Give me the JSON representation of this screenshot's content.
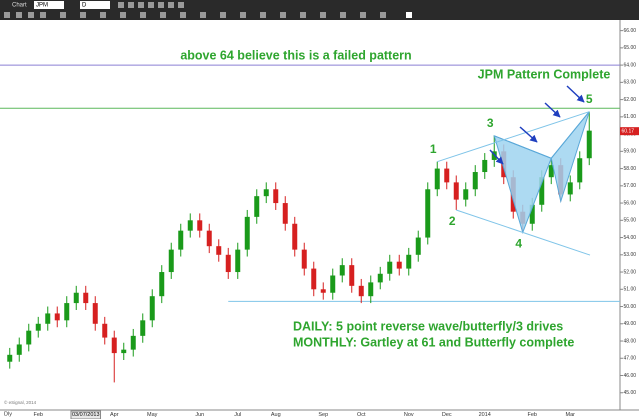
{
  "toolbar": {
    "window": "Chart",
    "symbol": "JPM",
    "interval_box": "D"
  },
  "chart_data": {
    "type": "candlestick",
    "interval": "Dly",
    "copyright": "© eSignal, 2014",
    "categories": [
      null,
      null,
      null,
      "Feb",
      null,
      null,
      null,
      null,
      "03/07/2013",
      null,
      null,
      "Apr",
      null,
      null,
      null,
      "May",
      null,
      null,
      null,
      null,
      "Jun",
      null,
      null,
      null,
      "Jul",
      null,
      null,
      null,
      "Aug",
      null,
      null,
      null,
      null,
      "Sep",
      null,
      null,
      null,
      "Oct",
      null,
      null,
      null,
      null,
      "Nov",
      null,
      null,
      null,
      "Dec",
      null,
      null,
      null,
      "2014",
      null,
      null,
      null,
      null,
      "Feb",
      null,
      null,
      null,
      "Mar",
      null,
      null
    ],
    "open": [
      46.8,
      47.2,
      47.8,
      48.6,
      49.0,
      49.6,
      49.2,
      50.2,
      50.8,
      50.2,
      49.0,
      48.2,
      47.3,
      47.5,
      48.3,
      49.2,
      50.6,
      52.0,
      53.3,
      54.4,
      55.0,
      54.4,
      53.5,
      53.0,
      52.0,
      53.3,
      55.2,
      56.4,
      56.8,
      56.0,
      54.8,
      53.3,
      52.2,
      51.0,
      50.8,
      51.8,
      52.4,
      51.2,
      50.6,
      51.4,
      51.9,
      52.6,
      52.2,
      53.0,
      54.0,
      56.8,
      58.0,
      57.2,
      56.2,
      56.8,
      57.8,
      58.5,
      59.0,
      57.5,
      55.5,
      54.8,
      55.9,
      57.5,
      58.2,
      56.5,
      57.2,
      58.6
    ],
    "high": [
      47.6,
      48.2,
      49.0,
      49.4,
      50.0,
      50.0,
      50.6,
      51.2,
      51.2,
      50.6,
      49.4,
      48.6,
      47.9,
      48.7,
      49.6,
      51.0,
      52.4,
      53.7,
      54.8,
      55.4,
      55.4,
      54.8,
      53.9,
      53.4,
      53.7,
      55.6,
      56.8,
      57.2,
      57.2,
      56.4,
      55.2,
      53.7,
      52.6,
      51.4,
      52.2,
      52.8,
      52.8,
      51.6,
      51.8,
      52.3,
      53.0,
      53.0,
      53.4,
      54.4,
      57.2,
      58.4,
      58.4,
      57.6,
      57.2,
      58.2,
      58.9,
      59.9,
      59.4,
      57.9,
      55.9,
      56.3,
      57.9,
      58.6,
      58.6,
      57.6,
      59.0,
      61.3
    ],
    "low": [
      46.4,
      46.8,
      47.4,
      48.2,
      48.6,
      48.8,
      48.8,
      49.8,
      49.8,
      48.6,
      47.8,
      45.6,
      46.9,
      47.1,
      47.9,
      48.8,
      50.2,
      51.6,
      52.9,
      54.0,
      54.0,
      53.1,
      52.6,
      51.6,
      51.6,
      52.9,
      54.8,
      56.0,
      55.6,
      54.4,
      52.9,
      51.8,
      50.6,
      50.4,
      50.4,
      51.4,
      50.8,
      50.2,
      50.2,
      51.0,
      51.5,
      51.8,
      51.8,
      52.6,
      53.6,
      56.4,
      56.8,
      55.6,
      55.8,
      56.4,
      57.4,
      58.1,
      57.1,
      55.1,
      54.3,
      54.4,
      55.5,
      57.1,
      56.1,
      56.1,
      56.8,
      58.2
    ],
    "close": [
      47.2,
      47.8,
      48.6,
      49.0,
      49.6,
      49.2,
      50.2,
      50.8,
      50.2,
      49.0,
      48.2,
      47.3,
      47.5,
      48.3,
      49.2,
      50.6,
      52.0,
      53.3,
      54.4,
      55.0,
      54.4,
      53.5,
      53.0,
      52.0,
      53.3,
      55.2,
      56.4,
      56.8,
      56.0,
      54.8,
      53.3,
      52.2,
      51.0,
      50.8,
      51.8,
      52.4,
      51.2,
      50.6,
      51.4,
      51.9,
      52.6,
      52.2,
      53.0,
      54.0,
      56.8,
      58.0,
      57.2,
      56.2,
      56.8,
      57.8,
      58.5,
      59.0,
      57.5,
      55.5,
      54.8,
      55.9,
      57.5,
      58.2,
      56.5,
      57.2,
      58.6,
      60.2
    ],
    "up_color": "#1a9a1a",
    "down_color": "#d62020",
    "last_price": 60.17,
    "ylim": [
      44,
      66.5
    ],
    "yticks": [
      {
        "value": 45,
        "label": "45.00"
      },
      {
        "value": 46,
        "label": "46.00"
      },
      {
        "value": 47,
        "label": "47.00"
      },
      {
        "value": 48,
        "label": "48.00"
      },
      {
        "value": 49,
        "label": "49.00"
      },
      {
        "value": 50,
        "label": "50.00"
      },
      {
        "value": 51,
        "label": "51.00"
      },
      {
        "value": 52,
        "label": "52.00"
      },
      {
        "value": 53,
        "label": "53.00"
      },
      {
        "value": 54,
        "label": "54.00"
      },
      {
        "value": 55,
        "label": "55.00"
      },
      {
        "value": 56,
        "label": "56.00"
      },
      {
        "value": 57,
        "label": "57.00"
      },
      {
        "value": 58,
        "label": "58.00"
      },
      {
        "value": 59,
        "label": "59.00"
      },
      {
        "value": 60,
        "label": "60.00"
      },
      {
        "value": 61,
        "label": "61.00"
      },
      {
        "value": 62,
        "label": "62.00"
      },
      {
        "value": 63,
        "label": "63.00"
      },
      {
        "value": 64,
        "label": "64.00"
      },
      {
        "value": 65,
        "label": "65.00"
      },
      {
        "value": 66,
        "label": "66.00"
      }
    ],
    "levels": [
      {
        "value": 64,
        "color": "#8a7fd4"
      },
      {
        "value": 61.5,
        "color": "#5cb85c"
      },
      {
        "value": 50.3,
        "color": "#7fc4e8"
      }
    ],
    "wave_labels": [
      "1",
      "2",
      "3",
      "4",
      "5"
    ],
    "annotations": [
      "above 64 believe this is a failed pattern",
      "JPM Pattern Complete",
      "DAILY: 5 point reverse wave/butterfly/3 drives",
      "MONTHLY: Gartley at 61 and Butterfly complete"
    ]
  }
}
